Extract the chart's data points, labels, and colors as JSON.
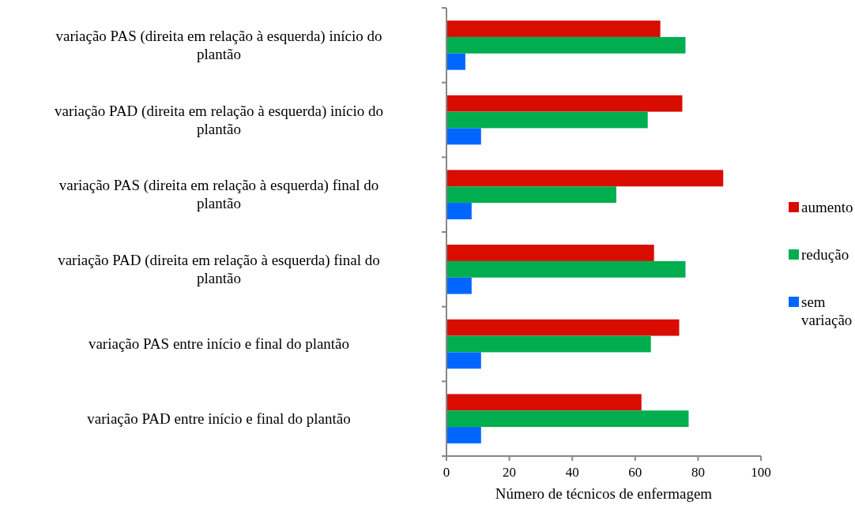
{
  "chart_data": {
    "type": "bar",
    "orientation": "horizontal",
    "xlabel": "Número de técnicos de enfermagem",
    "categories": [
      "variação PAS (direita em relação à esquerda) início do plantão",
      "variação PAD (direita em relação à esquerda) início do plantão",
      "variação PAS (direita em relação à esquerda) final do plantão",
      "variação PAD (direita em relação à esquerda) final do plantão",
      "variação PAS entre início e final do plantão",
      "variação PAD entre início e final do plantão"
    ],
    "series": [
      {
        "name": "aumento",
        "color": "#d90c00",
        "values": [
          68,
          75,
          88,
          66,
          74,
          62
        ]
      },
      {
        "name": "redução",
        "color": "#00ae50",
        "values": [
          76,
          64,
          54,
          76,
          65,
          77
        ]
      },
      {
        "name": "sem variação",
        "color": "#0066ff",
        "values": [
          6,
          11,
          8,
          8,
          11,
          11
        ]
      }
    ],
    "xlim": [
      0,
      100
    ],
    "xticks": [
      0,
      20,
      40,
      60,
      80,
      100
    ],
    "grid": false,
    "legend": "right"
  }
}
